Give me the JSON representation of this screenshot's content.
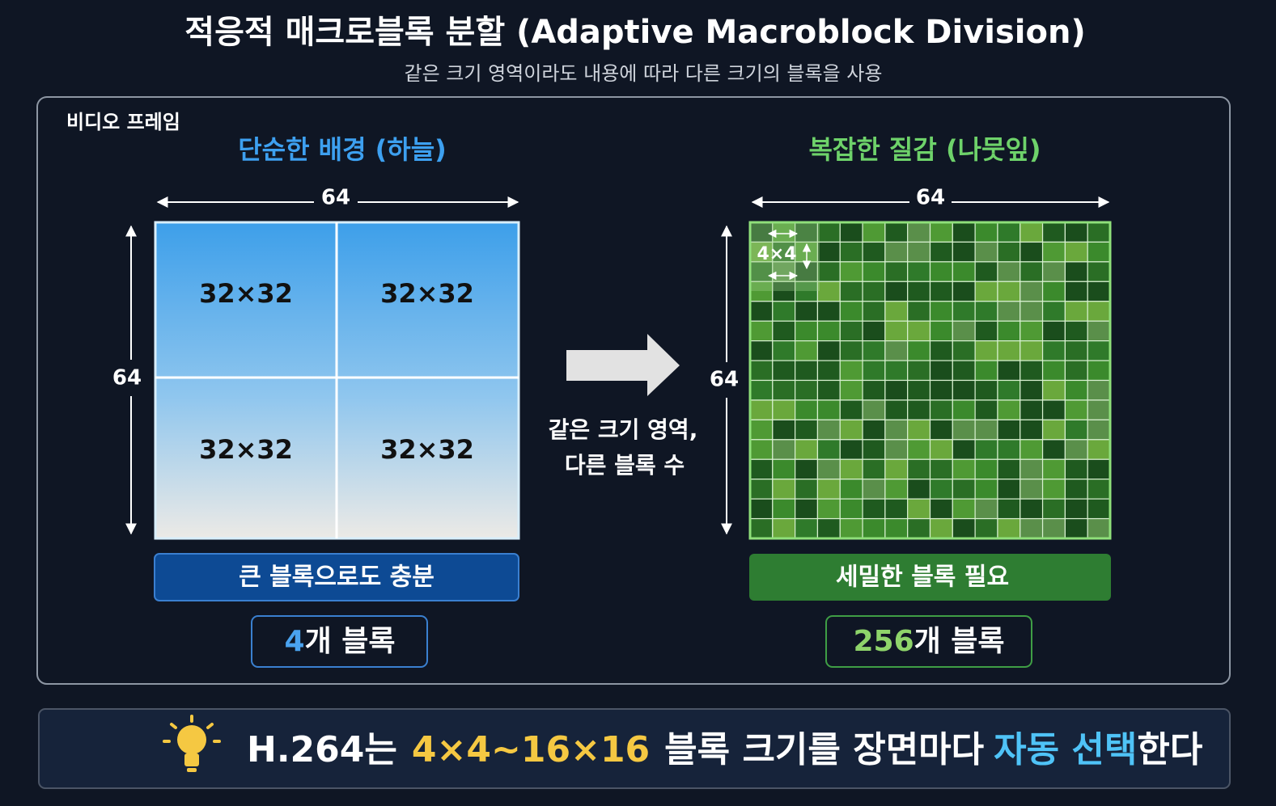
{
  "header": {
    "title": "적응적 매크로블록 분할 (Adaptive Macroblock Division)",
    "subtitle": "같은 크기 영역이라도 내용에 따라 다른 크기의 블록을 사용"
  },
  "frame": {
    "label": "비디오 프레임",
    "left": {
      "heading": "단순한 배경 (하늘)",
      "width_label": "64",
      "height_label": "64",
      "blocks": [
        "32×32",
        "32×32",
        "32×32",
        "32×32"
      ],
      "caption": "큰 블록으로도 충분",
      "count": "4",
      "count_unit": "개 블록"
    },
    "arrow": {
      "lines": [
        "같은 크기 영역,",
        "다른 블록 수"
      ]
    },
    "right": {
      "heading": "복잡한 질감 (나뭇잎)",
      "width_label": "64",
      "height_label": "64",
      "block_label": "4×4",
      "caption": "세밀한 블록 필요",
      "count": "256",
      "count_unit": "개 블록"
    }
  },
  "footer": {
    "parts": [
      "H.264는",
      "4×4~16×16",
      "블록 크기를 장면마다",
      "자동 선택",
      "한다"
    ]
  }
}
